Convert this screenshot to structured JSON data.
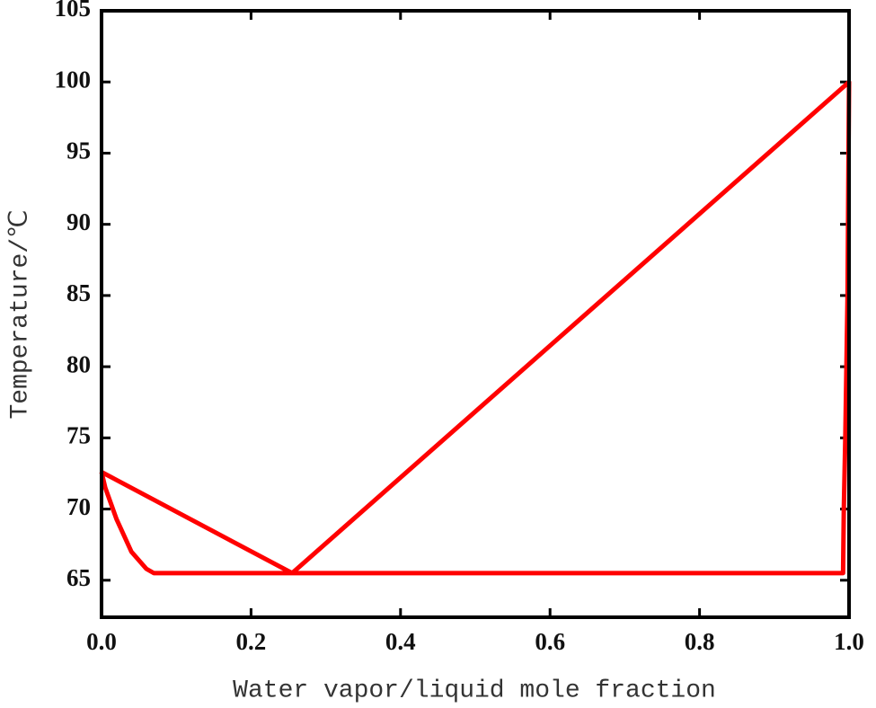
{
  "chart_data": {
    "type": "line",
    "xlabel": "Water vapor/liquid mole fraction",
    "ylabel": "Temperature/℃",
    "x": [
      0,
      0.255,
      1.0,
      0.998,
      0.995,
      0.993,
      0.992,
      0.07,
      0.06,
      0.04,
      0.02,
      0.005,
      0
    ],
    "values": [
      72.6,
      65.5,
      100,
      85,
      75,
      70,
      65.5,
      65.5,
      65.8,
      67,
      69.3,
      71.5,
      72.6
    ],
    "color": "#ff0000",
    "xlim": [
      0,
      1.0
    ],
    "xticks": [
      {
        "value": 0,
        "label": "0.0"
      },
      0.2,
      0.4,
      0.6,
      0.8,
      {
        "value": 1,
        "label": "1.0"
      }
    ],
    "ylim": [
      62.4,
      105
    ],
    "yticks": [
      65,
      70,
      75,
      80,
      85,
      90,
      95,
      100,
      105
    ],
    "grid": false
  }
}
